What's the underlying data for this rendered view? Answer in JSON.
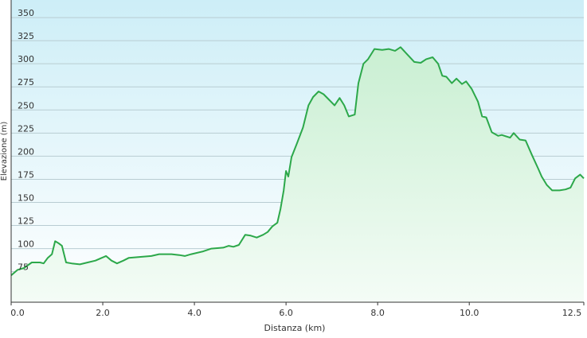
{
  "chart_data": {
    "type": "area",
    "x_label": "Distanza  (km)",
    "y_label": "Elevazione (m)",
    "x": [
      0,
      0.14,
      0.28,
      0.45,
      0.63,
      0.71,
      0.8,
      0.89,
      0.96,
      1.03,
      1.11,
      1.2,
      1.32,
      1.5,
      1.67,
      1.84,
      2.07,
      2.19,
      2.31,
      2.45,
      2.57,
      2.8,
      3.06,
      3.23,
      3.5,
      3.67,
      3.79,
      3.93,
      4.19,
      4.37,
      4.63,
      4.75,
      4.85,
      4.97,
      5.11,
      5.23,
      5.36,
      5.5,
      5.6,
      5.7,
      5.81,
      5.88,
      5.95,
      6.0,
      6.05,
      6.12,
      6.24,
      6.37,
      6.49,
      6.59,
      6.71,
      6.82,
      6.94,
      7.06,
      7.17,
      7.27,
      7.37,
      7.5,
      7.58,
      7.69,
      7.79,
      7.93,
      8.1,
      8.24,
      8.38,
      8.5,
      8.63,
      8.8,
      8.94,
      9.06,
      9.2,
      9.32,
      9.41,
      9.5,
      9.62,
      9.72,
      9.84,
      9.93,
      10.05,
      10.19,
      10.28,
      10.37,
      10.49,
      10.63,
      10.71,
      10.89,
      10.97,
      11.1,
      11.23,
      11.37,
      11.5,
      11.58,
      11.69,
      11.81,
      11.97,
      12.1,
      12.21,
      12.31,
      12.42,
      12.5
    ],
    "series": [
      {
        "color": "#2ca84a",
        "fill": "#d6f2dc",
        "values": [
          71,
          77,
          79,
          85,
          85,
          84,
          90,
          94,
          108,
          106,
          103,
          85,
          84,
          83,
          85,
          87,
          92,
          87,
          84,
          87,
          90,
          91,
          92,
          94,
          94,
          93,
          92,
          94,
          97,
          100,
          101,
          103,
          102,
          104,
          115,
          114,
          112,
          115,
          118,
          124,
          128,
          143,
          163,
          184,
          178,
          199,
          214,
          231,
          255,
          264,
          270,
          267,
          261,
          255,
          263,
          255,
          243,
          245,
          279,
          300,
          305,
          316,
          315,
          316,
          314,
          318,
          311,
          302,
          301,
          305,
          307,
          300,
          287,
          286,
          279,
          284,
          278,
          281,
          273,
          259,
          243,
          242,
          226,
          222,
          223,
          220,
          225,
          218,
          217,
          201,
          187,
          178,
          169,
          163,
          163,
          164,
          166,
          176,
          180,
          176
        ]
      }
    ],
    "xlim": [
      0,
      12.5
    ],
    "xticks": [
      {
        "value": 0,
        "label": "0.0"
      },
      {
        "value": 2,
        "label": "2.0"
      },
      {
        "value": 4,
        "label": "4.0"
      },
      {
        "value": 6,
        "label": "6.0"
      },
      {
        "value": 8,
        "label": "8.0"
      },
      {
        "value": 10,
        "label": "10.0"
      },
      {
        "value": 12.5,
        "label": "12.5"
      }
    ],
    "ylim": [
      42,
      369
    ],
    "yticks": [
      75,
      100,
      125,
      150,
      175,
      200,
      225,
      250,
      275,
      300,
      325,
      350
    ],
    "grid": true
  }
}
